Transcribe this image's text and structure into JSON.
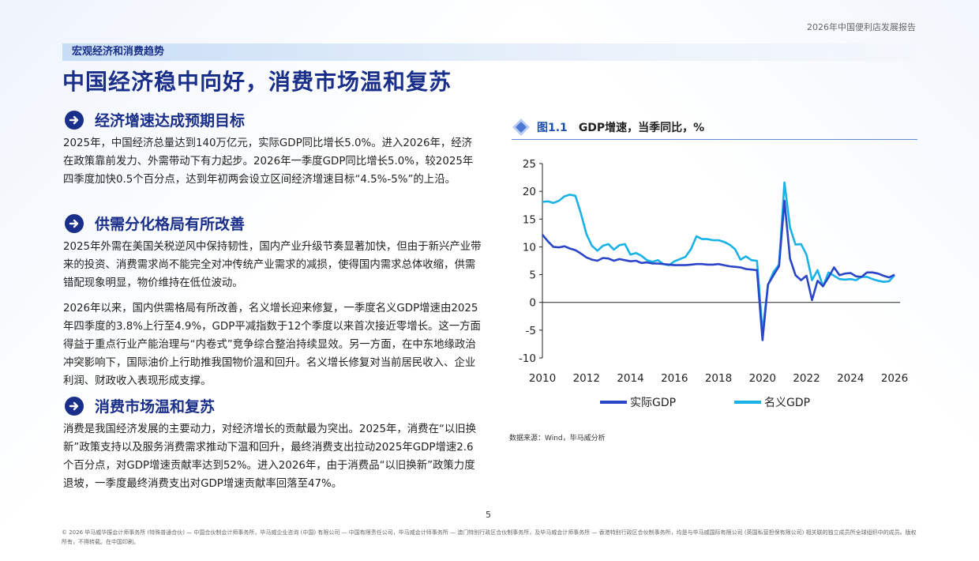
{
  "header": {
    "report_name": "2026年中国便利店发展报告"
  },
  "section_tag": "宏观经济和消费趋势",
  "page_title": "中国经济稳中向好，消费市场温和复苏",
  "sections": [
    {
      "heading": "经济增速达成预期目标",
      "paragraphs": [
        "2025年，中国经济总量达到140万亿元，实际GDP同比增长5.0%。进入2026年，经济在政策靠前发力、外需带动下有力起步。2026年一季度GDP同比增长5.0%，较2025年四季度加快0.5个百分点，达到年初两会设立区间经济增速目标“4.5%-5%”的上沿。"
      ]
    },
    {
      "heading": "供需分化格局有所改善",
      "paragraphs": [
        "2025年外需在美国关税逆风中保持韧性，国内产业升级节奏显著加快，但由于新兴产业带来的投资、消费需求尚不能完全对冲传统产业需求的减损，使得国内需求总体收缩，供需错配现象明显，物价维持在低位波动。",
        "2026年以来，国内供需格局有所改善，名义增长迎来修复，一季度名义GDP增速由2025年四季度的3.8%上行至4.9%，GDP平减指数于12个季度以来首次接近零增长。这一方面得益于重点行业产能治理与“内卷式”竞争综合整治持续显效。另一方面，在中东地缘政治冲突影响下，国际油价上行助推我国物价温和回升。名义增长修复对当前居民收入、企业利润、财政收入表现形成支撑。"
      ]
    },
    {
      "heading": "消费市场温和复苏",
      "paragraphs": [
        "消费是我国经济发展的主要动力，对经济增长的贡献最为突出。2025年，消费在“以旧换新”政策支持以及服务消费需求推动下温和回升，最终消费支出拉动2025年GDP增速2.6个百分点，对GDP增速贡献率达到52%。进入2026年，由于消费品“以旧换新”政策力度退坡，一季度最终消费支出对GDP增速贡献率回落至47%。"
      ]
    }
  ],
  "figure": {
    "number": "图1.1",
    "title": "GDP增速，当季同比，%"
  },
  "chart_data": {
    "type": "line",
    "title": "GDP增速，当季同比，%",
    "xlabel": "",
    "ylabel": "",
    "ylim": [
      -10,
      25
    ],
    "xlim": [
      2010,
      2026.25
    ],
    "yticks": [
      25,
      20,
      15,
      10,
      5,
      0,
      -5,
      -10
    ],
    "xticks": [
      2010,
      2012,
      2014,
      2016,
      2018,
      2020,
      2022,
      2024,
      2026
    ],
    "grid": false,
    "legend_position": "bottom",
    "series": [
      {
        "name": "实际GDP",
        "color": "#2a45c8",
        "x": [
          2010.0,
          2010.25,
          2010.5,
          2010.75,
          2011.0,
          2011.25,
          2011.5,
          2011.75,
          2012.0,
          2012.25,
          2012.5,
          2012.75,
          2013.0,
          2013.25,
          2013.5,
          2013.75,
          2014.0,
          2014.25,
          2014.5,
          2014.75,
          2015.0,
          2015.25,
          2015.5,
          2015.75,
          2016.0,
          2016.25,
          2016.5,
          2016.75,
          2017.0,
          2017.25,
          2017.5,
          2017.75,
          2018.0,
          2018.25,
          2018.5,
          2018.75,
          2019.0,
          2019.25,
          2019.5,
          2019.75,
          2020.0,
          2020.25,
          2020.5,
          2020.75,
          2021.0,
          2021.25,
          2021.5,
          2021.75,
          2022.0,
          2022.25,
          2022.5,
          2022.75,
          2023.0,
          2023.25,
          2023.5,
          2023.75,
          2024.0,
          2024.25,
          2024.5,
          2024.75,
          2025.0,
          2025.25,
          2025.5,
          2025.75,
          2026.0
        ],
        "values": [
          12.2,
          11.0,
          10.0,
          9.9,
          10.1,
          9.7,
          9.4,
          8.8,
          8.1,
          7.7,
          7.5,
          8.0,
          7.9,
          7.5,
          7.8,
          7.6,
          7.4,
          7.5,
          7.1,
          7.2,
          7.0,
          7.0,
          6.9,
          6.8,
          6.7,
          6.7,
          6.7,
          6.8,
          6.9,
          6.9,
          6.8,
          6.8,
          6.9,
          6.7,
          6.5,
          6.4,
          6.3,
          6.0,
          5.9,
          5.8,
          -6.8,
          3.2,
          4.9,
          6.5,
          18.3,
          7.9,
          4.9,
          4.0,
          4.8,
          0.4,
          3.9,
          2.9,
          4.5,
          6.3,
          4.9,
          5.2,
          5.3,
          4.7,
          4.6,
          5.4,
          5.4,
          5.2,
          4.8,
          4.5,
          5.0
        ]
      },
      {
        "name": "名义GDP",
        "color": "#19b2e6",
        "x": [
          2010.0,
          2010.25,
          2010.5,
          2010.75,
          2011.0,
          2011.25,
          2011.5,
          2011.75,
          2012.0,
          2012.25,
          2012.5,
          2012.75,
          2013.0,
          2013.25,
          2013.5,
          2013.75,
          2014.0,
          2014.25,
          2014.5,
          2014.75,
          2015.0,
          2015.25,
          2015.5,
          2015.75,
          2016.0,
          2016.25,
          2016.5,
          2016.75,
          2017.0,
          2017.25,
          2017.5,
          2017.75,
          2018.0,
          2018.25,
          2018.5,
          2018.75,
          2019.0,
          2019.25,
          2019.5,
          2019.75,
          2020.0,
          2020.25,
          2020.5,
          2020.75,
          2021.0,
          2021.25,
          2021.5,
          2021.75,
          2022.0,
          2022.25,
          2022.5,
          2022.75,
          2023.0,
          2023.25,
          2023.5,
          2023.75,
          2024.0,
          2024.25,
          2024.5,
          2024.75,
          2025.0,
          2025.25,
          2025.5,
          2025.75,
          2026.0
        ],
        "values": [
          18.1,
          18.2,
          17.9,
          18.3,
          19.1,
          19.4,
          19.2,
          16.0,
          12.3,
          10.2,
          9.3,
          10.2,
          10.5,
          9.5,
          10.3,
          10.5,
          8.6,
          8.9,
          8.4,
          7.6,
          7.3,
          7.6,
          6.9,
          6.7,
          7.4,
          7.8,
          8.2,
          9.6,
          11.9,
          11.4,
          11.4,
          11.2,
          11.2,
          10.9,
          10.4,
          9.6,
          7.7,
          8.3,
          7.6,
          7.5,
          -5.3,
          3.1,
          5.5,
          6.8,
          21.6,
          13.5,
          10.4,
          10.5,
          8.6,
          4.0,
          5.8,
          2.9,
          5.4,
          4.8,
          4.2,
          4.1,
          4.2,
          4.0,
          4.6,
          4.6,
          4.2,
          3.9,
          3.7,
          3.8,
          4.9
        ]
      }
    ]
  },
  "source": "数据来源：Wind，毕马威分析",
  "page_number": "5",
  "footer_text": "© 2026 毕马威华振会计师事务所 (特殊普通合伙) — 中国合伙制会计师事务所，毕马威企业咨询 (中国) 有限公司 — 中国有限责任公司，毕马威会计师事务所 — 澳门特别行政区合伙制事务所，及毕马威会计师事务所 — 香港特别行政区合伙制事务所，均是与毕马威国际有限公司 (英国私营担保有限公司) 相关联的独立成员所全球组织中的成员。版权所有，不得转载。在中国印刷。"
}
